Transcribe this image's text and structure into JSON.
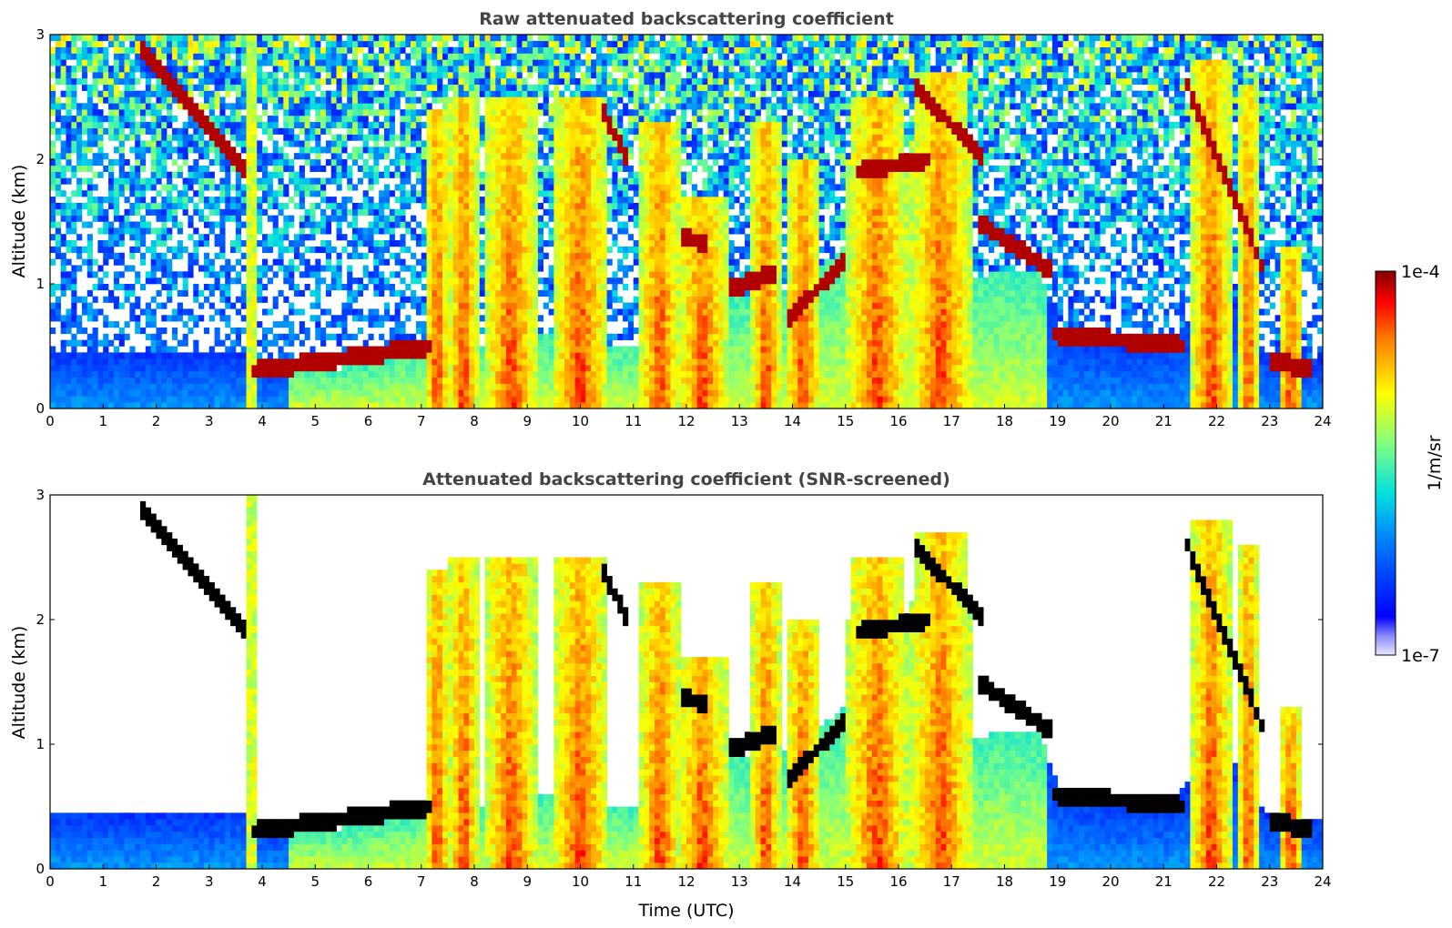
{
  "chart_data": [
    {
      "type": "heatmap",
      "title": "Raw attenuated backscattering coefficient",
      "xlabel": "",
      "ylabel": "Altitude (km)",
      "xlim": [
        0,
        24
      ],
      "ylim": [
        0,
        3
      ],
      "x_ticks": [
        "0",
        "1",
        "2",
        "3",
        "4",
        "5",
        "6",
        "7",
        "8",
        "9",
        "10",
        "11",
        "12",
        "13",
        "14",
        "15",
        "16",
        "17",
        "18",
        "19",
        "20",
        "21",
        "22",
        "23",
        "24"
      ],
      "y_ticks": [
        "0",
        "1",
        "2",
        "3"
      ],
      "screened": false
    },
    {
      "type": "heatmap",
      "title": "Attenuated backscattering coefficient (SNR-screened)",
      "xlabel": "Time (UTC)",
      "ylabel": "Altitude (km)",
      "xlim": [
        0,
        24
      ],
      "ylim": [
        0,
        3
      ],
      "x_ticks": [
        "0",
        "1",
        "2",
        "3",
        "4",
        "5",
        "6",
        "7",
        "8",
        "9",
        "10",
        "11",
        "12",
        "13",
        "14",
        "15",
        "16",
        "17",
        "18",
        "19",
        "20",
        "21",
        "22",
        "23",
        "24"
      ],
      "y_ticks": [
        "0",
        "1",
        "2",
        "3"
      ],
      "screened": true
    }
  ],
  "colorbar": {
    "label": "1/m/sr",
    "max_label": "1e-4",
    "min_label": "1e-7",
    "scale": "log",
    "range": [
      1e-07,
      0.0001
    ]
  },
  "signal_model": {
    "boundary_layer_top_km": [
      [
        0,
        0.45
      ],
      [
        3.7,
        0.45
      ],
      [
        3.8,
        0.35
      ],
      [
        5,
        0.3
      ],
      [
        6,
        0.35
      ],
      [
        7,
        0.45
      ],
      [
        8,
        0.5
      ],
      [
        9,
        0.6
      ],
      [
        10,
        0.55
      ],
      [
        11,
        0.5
      ],
      [
        12,
        0.8
      ],
      [
        13,
        0.9
      ],
      [
        14,
        0.95
      ],
      [
        15,
        1.3
      ],
      [
        16,
        1.0
      ],
      [
        17,
        1.0
      ],
      [
        18,
        1.1
      ],
      [
        18.7,
        1.1
      ],
      [
        19,
        0.65
      ],
      [
        20,
        0.55
      ],
      [
        21,
        0.5
      ],
      [
        21.5,
        0.7
      ],
      [
        22,
        1.1
      ],
      [
        23,
        0.4
      ],
      [
        24,
        0.4
      ]
    ],
    "cloud_layers": [
      {
        "t0": 1.7,
        "t1": 3.7,
        "z0": 2.9,
        "z1": 1.9
      },
      {
        "t0": 3.8,
        "t1": 7.2,
        "z0": 0.3,
        "z1": 0.5
      },
      {
        "t0": 10.4,
        "t1": 10.9,
        "z0": 2.4,
        "z1": 2.0
      },
      {
        "t0": 11.9,
        "t1": 12.4,
        "z0": 1.4,
        "z1": 1.3
      },
      {
        "t0": 12.8,
        "t1": 13.7,
        "z0": 0.95,
        "z1": 1.1
      },
      {
        "t0": 13.9,
        "t1": 15.0,
        "z0": 0.7,
        "z1": 1.2
      },
      {
        "t0": 15.2,
        "t1": 16.6,
        "z0": 1.9,
        "z1": 2.0
      },
      {
        "t0": 16.3,
        "t1": 17.6,
        "z0": 2.6,
        "z1": 2.0
      },
      {
        "t0": 17.5,
        "t1": 18.9,
        "z0": 1.5,
        "z1": 1.1
      },
      {
        "t0": 18.9,
        "t1": 21.4,
        "z0": 0.6,
        "z1": 0.5
      },
      {
        "t0": 21.4,
        "t1": 22.9,
        "z0": 2.65,
        "z1": 1.1
      },
      {
        "t0": 23.0,
        "t1": 23.8,
        "z0": 0.4,
        "z1": 0.3
      }
    ],
    "plumes": [
      {
        "t": 3.8,
        "w": 0.06,
        "top": 3.0
      },
      {
        "t": 7.3,
        "w": 0.25,
        "top": 2.4
      },
      {
        "t": 7.8,
        "w": 0.3,
        "top": 2.5
      },
      {
        "t": 8.7,
        "w": 0.5,
        "top": 2.5
      },
      {
        "t": 10.0,
        "w": 0.55,
        "top": 2.5
      },
      {
        "t": 11.5,
        "w": 0.4,
        "top": 2.3
      },
      {
        "t": 12.3,
        "w": 0.5,
        "top": 1.7
      },
      {
        "t": 13.5,
        "w": 0.3,
        "top": 2.3
      },
      {
        "t": 14.2,
        "w": 0.35,
        "top": 2.0
      },
      {
        "t": 15.6,
        "w": 0.6,
        "top": 2.5
      },
      {
        "t": 16.8,
        "w": 0.6,
        "top": 2.7
      },
      {
        "t": 21.9,
        "w": 0.4,
        "top": 2.8
      },
      {
        "t": 22.6,
        "w": 0.2,
        "top": 2.6
      },
      {
        "t": 23.4,
        "w": 0.25,
        "top": 1.3
      }
    ]
  }
}
